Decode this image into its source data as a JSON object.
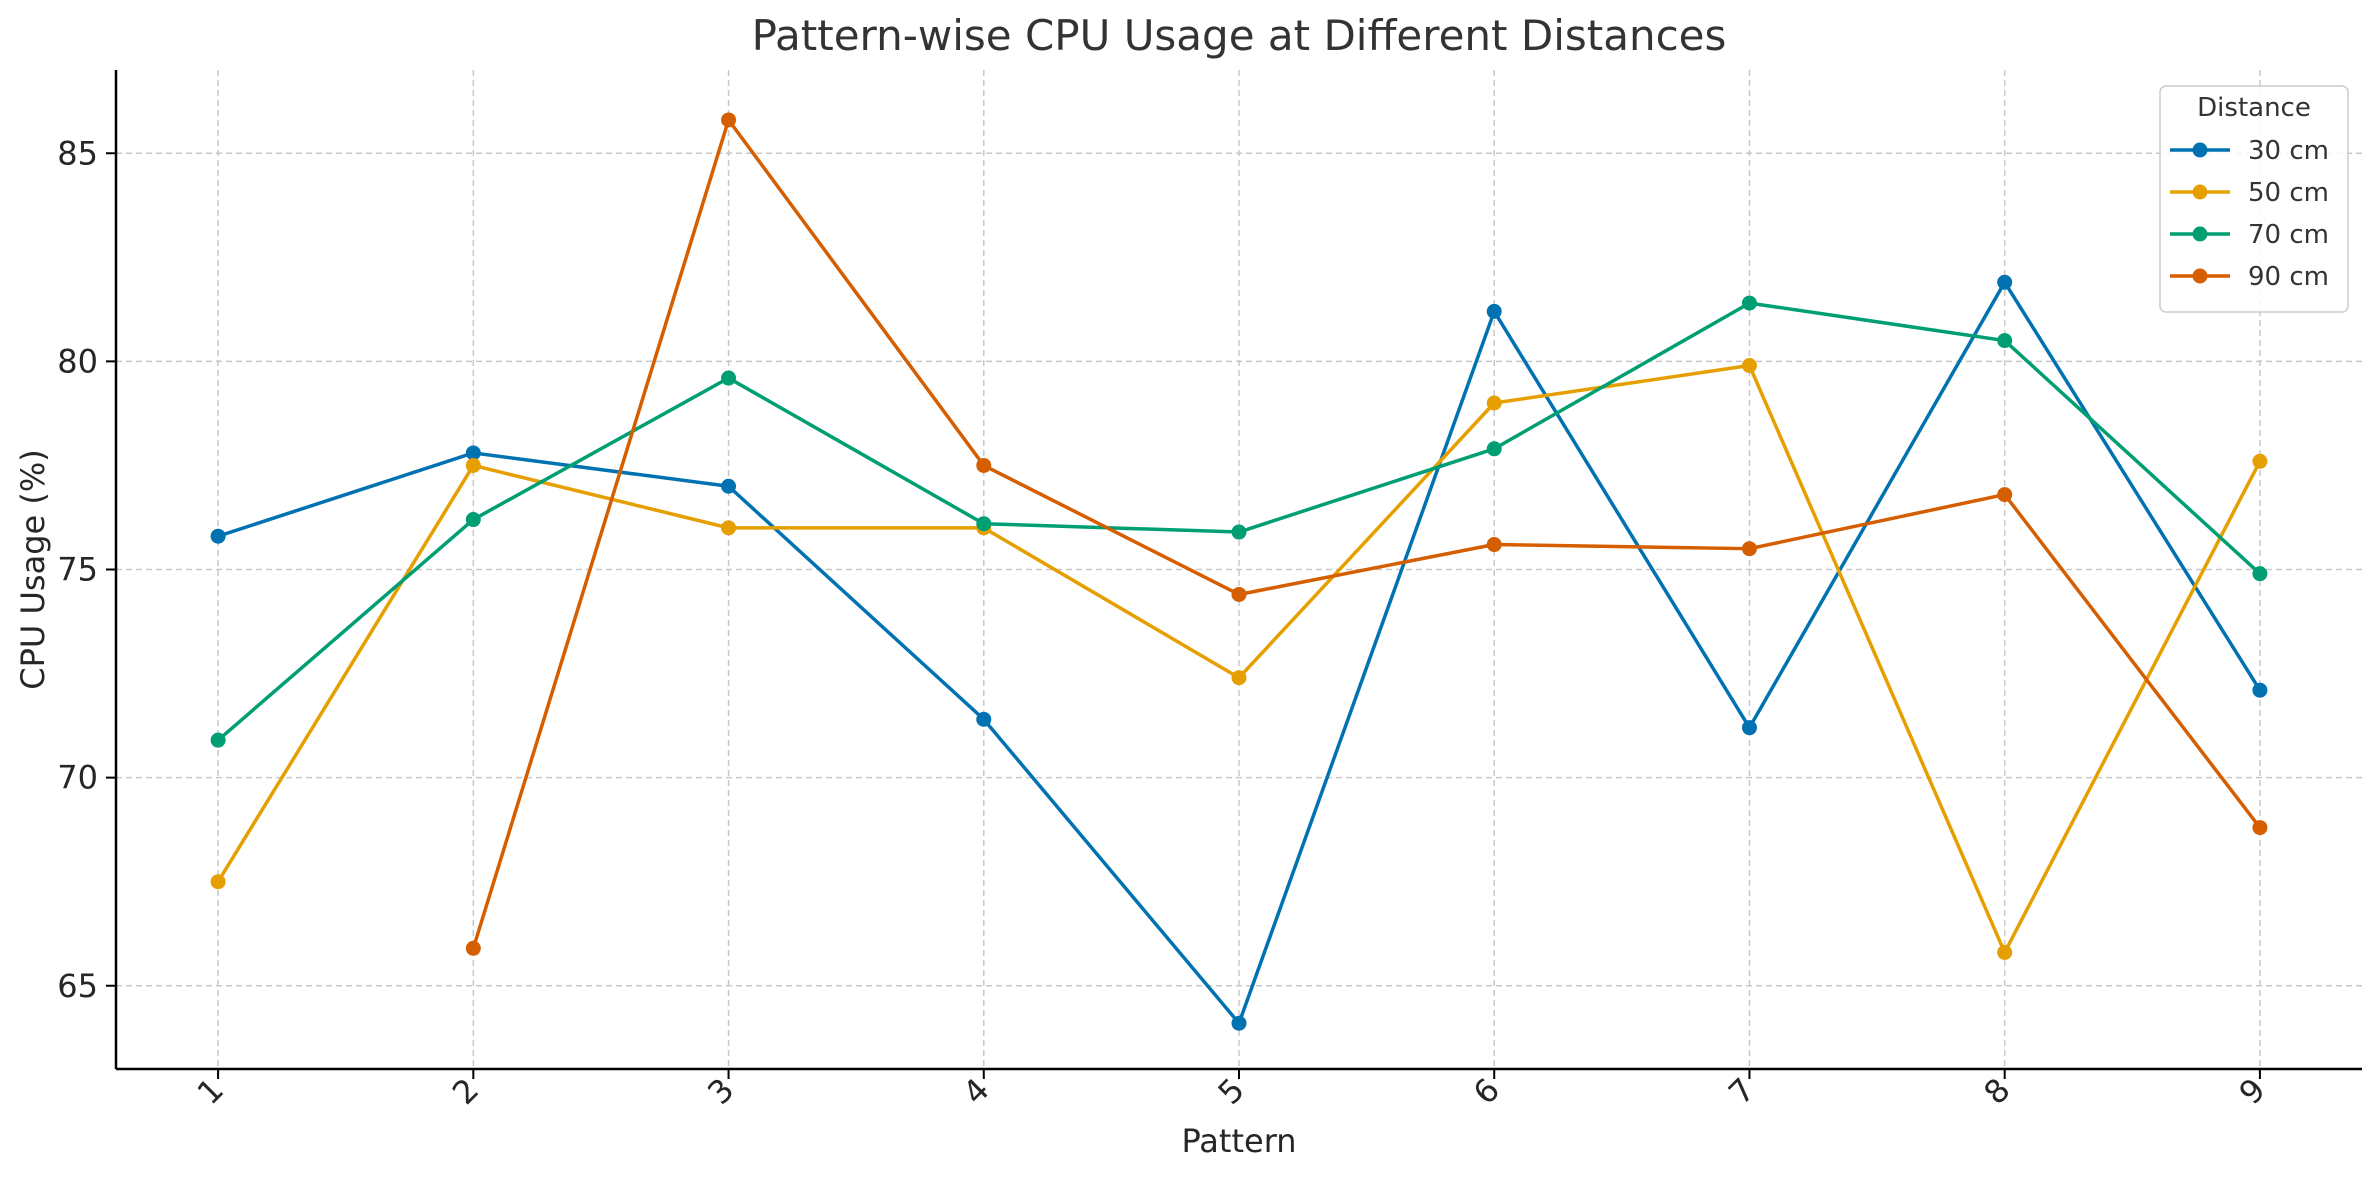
{
  "chart_data": {
    "type": "line",
    "title": "Pattern-wise CPU Usage at Different Distances",
    "xlabel": "Pattern",
    "ylabel": "CPU Usage (%)",
    "x": [
      1,
      2,
      3,
      4,
      5,
      6,
      7,
      8,
      9
    ],
    "x_tick_labels": [
      "1",
      "2",
      "3",
      "4",
      "5",
      "6",
      "7",
      "8",
      "9"
    ],
    "ylim": [
      63,
      87
    ],
    "y_ticks": [
      65,
      70,
      75,
      80,
      85
    ],
    "y_tick_labels": [
      "65",
      "70",
      "75",
      "80",
      "85"
    ],
    "grid": true,
    "legend": {
      "title": "Distance",
      "placement": "top-right"
    },
    "series": [
      {
        "name": "30 cm",
        "color": "#0072B2",
        "x": [
          1,
          2,
          3,
          4,
          5,
          6,
          7,
          8,
          9
        ],
        "values": [
          75.8,
          77.8,
          77.0,
          71.4,
          64.1,
          81.2,
          71.2,
          81.9,
          72.1
        ]
      },
      {
        "name": "50 cm",
        "color": "#E69F00",
        "x": [
          1,
          2,
          3,
          4,
          5,
          6,
          7,
          8,
          9
        ],
        "values": [
          67.5,
          77.5,
          76.0,
          76.0,
          72.4,
          79.0,
          79.9,
          65.8,
          77.6
        ]
      },
      {
        "name": "70 cm",
        "color": "#009E73",
        "x": [
          1,
          2,
          3,
          4,
          5,
          6,
          7,
          8,
          9
        ],
        "values": [
          70.9,
          76.2,
          79.6,
          76.1,
          75.9,
          77.9,
          81.4,
          80.5,
          74.9
        ]
      },
      {
        "name": "90 cm",
        "color": "#D55E00",
        "x": [
          2,
          3,
          4,
          5,
          6,
          7,
          8,
          9
        ],
        "values": [
          65.9,
          85.8,
          77.5,
          74.4,
          75.6,
          75.5,
          76.8,
          68.8
        ]
      }
    ]
  }
}
